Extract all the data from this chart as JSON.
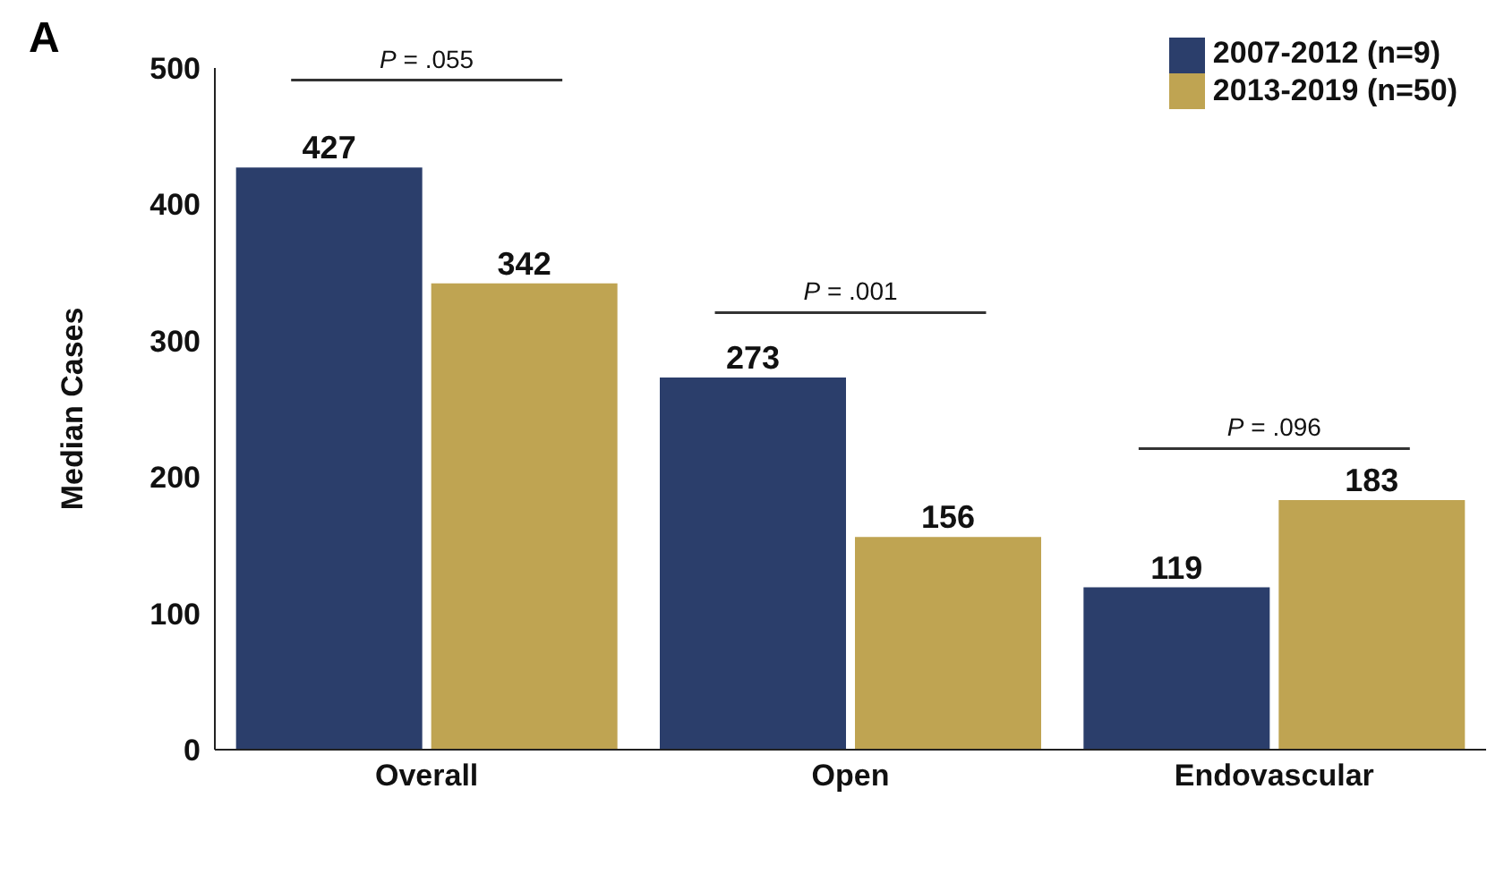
{
  "chart_data": {
    "type": "bar",
    "title": "A",
    "ylabel": "Median Cases",
    "categories": [
      "Overall",
      "Open",
      "Endovascular"
    ],
    "series": [
      {
        "name": "2007-2012 (n=9)",
        "color": "#2b3e6b",
        "values": [
          427,
          273,
          119
        ]
      },
      {
        "name": "2013-2019 (n=50)",
        "color": "#bfa452",
        "values": [
          342,
          156,
          183
        ]
      }
    ],
    "ylim": [
      0,
      500
    ],
    "yticks": [
      0,
      100,
      200,
      300,
      400,
      500
    ],
    "data_labels": true,
    "legend": "top right",
    "annotations": [
      "P = .055",
      "P = .001",
      "P = .096"
    ]
  }
}
